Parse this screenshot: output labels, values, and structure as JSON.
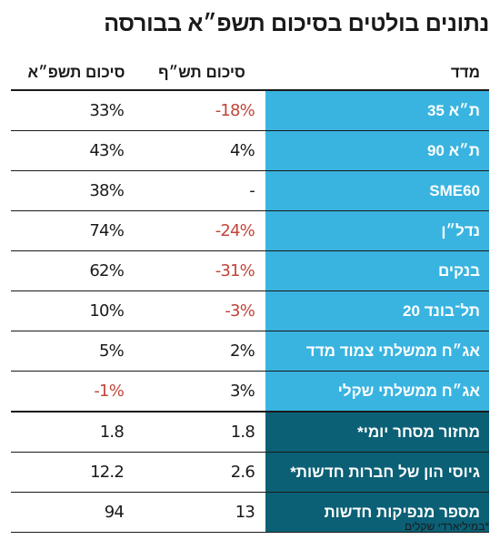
{
  "title": "נתונים בולטים בסיכום תשפ״א בבורסה",
  "columns": {
    "index": "מדד",
    "year_prev": "סיכום תש״ף",
    "year_curr": "סיכום תשפ״א"
  },
  "rows": [
    {
      "name": "ת״א 35",
      "prev": "-18%",
      "curr": "33%",
      "prev_negative": true,
      "curr_negative": false
    },
    {
      "name": "ת״א 90",
      "prev": "4%",
      "curr": "43%",
      "prev_negative": false,
      "curr_negative": false
    },
    {
      "name": "SME60",
      "prev": "-",
      "curr": "38%",
      "prev_negative": false,
      "curr_negative": false
    },
    {
      "name": "נדל״ן",
      "prev": "-24%",
      "curr": "74%",
      "prev_negative": true,
      "curr_negative": false
    },
    {
      "name": "בנקים",
      "prev": "-31%",
      "curr": "62%",
      "prev_negative": true,
      "curr_negative": false
    },
    {
      "name": "תל־בונד 20",
      "prev": "-3%",
      "curr": "10%",
      "prev_negative": true,
      "curr_negative": false
    },
    {
      "name": "אג״ח ממשלתי צמוד מדד",
      "prev": "2%",
      "curr": "5%",
      "prev_negative": false,
      "curr_negative": false
    },
    {
      "name": "אג״ח ממשלתי שקלי",
      "prev": "3%",
      "curr": "-1%",
      "prev_negative": false,
      "curr_negative": true
    },
    {
      "name": "מחזור מסחר יומי*",
      "prev": "1.8",
      "curr": "1.8",
      "prev_negative": false,
      "curr_negative": false
    },
    {
      "name": "גיוסי הון של חברות חדשות*",
      "prev": "2.6",
      "curr": "12.2",
      "prev_negative": false,
      "curr_negative": false
    },
    {
      "name": "מספר מנפיקות חדשות",
      "prev": "13",
      "curr": "94",
      "prev_negative": false,
      "curr_negative": false
    }
  ],
  "footnote": "*במיליארדי שקלים",
  "colors": {
    "index_cell_light": "#39b4e0",
    "index_cell_dark": "#0b6076",
    "negative_value": "#c0453a"
  }
}
